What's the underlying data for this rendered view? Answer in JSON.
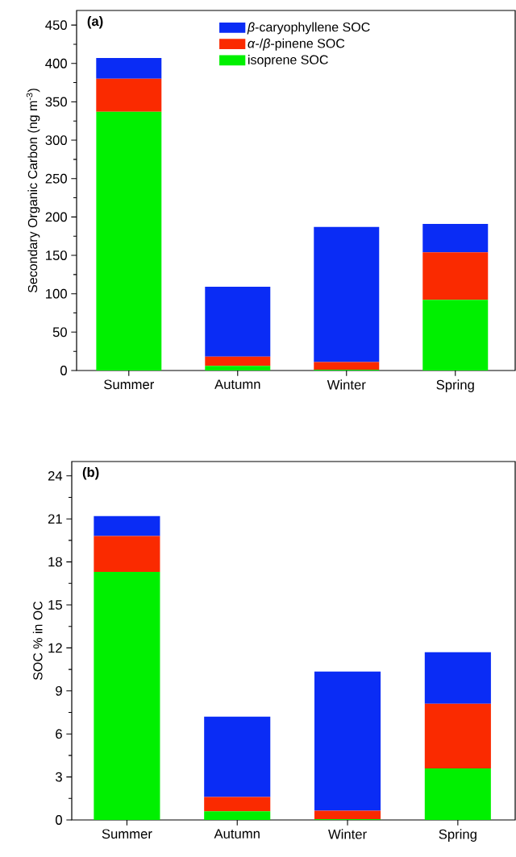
{
  "chart_data": [
    {
      "type": "bar",
      "stacked": true,
      "categories": [
        "Summer",
        "Autumn",
        "Winter",
        "Spring"
      ],
      "ylabel": "Secondary Organic Carbon (ng m$^{-3}$)",
      "ylim": [
        0,
        469
      ],
      "yticks": [
        0,
        50,
        100,
        150,
        200,
        250,
        300,
        350,
        400,
        450
      ],
      "legend": "top",
      "annotations": [
        "(a)"
      ],
      "series": [
        {
          "name": "isoprene SOC",
          "color": "#00f000",
          "values": [
            337,
            6,
            1,
            92
          ]
        },
        {
          "name": "*α*-/*β*-pinene SOC",
          "color": "#fa2a00",
          "values": [
            43,
            12,
            10,
            62
          ]
        },
        {
          "name": "*β*-caryophyllene SOC",
          "color": "#0a2cf5",
          "values": [
            27,
            91,
            176,
            37
          ]
        }
      ]
    },
    {
      "type": "bar",
      "stacked": true,
      "categories": [
        "Summer",
        "Autumn",
        "Winter",
        "Spring"
      ],
      "ylabel": "SOC % in OC",
      "ylim": [
        0,
        25
      ],
      "yticks": [
        0,
        3,
        6,
        9,
        12,
        15,
        18,
        21,
        24
      ],
      "annotations": [
        "(b)"
      ],
      "series": [
        {
          "color": "#00f000",
          "values": [
            17.3,
            0.6,
            0.05,
            3.6
          ]
        },
        {
          "color": "#fa2a00",
          "values": [
            2.5,
            1.0,
            0.6,
            4.5
          ]
        },
        {
          "color": "#0a2cf5",
          "values": [
            1.4,
            5.6,
            9.7,
            3.6
          ]
        }
      ]
    }
  ]
}
